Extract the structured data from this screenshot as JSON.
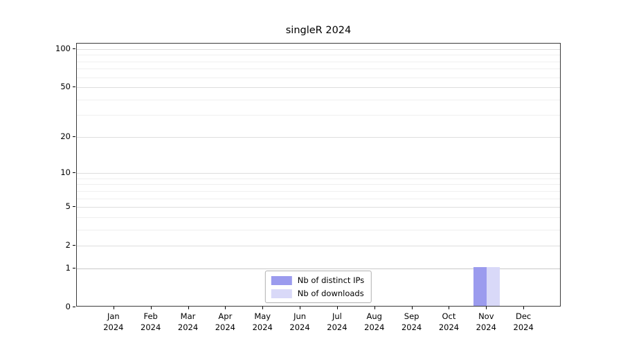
{
  "chart_data": {
    "type": "bar",
    "title": "singleR 2024",
    "categories": [
      "Jan 2024",
      "Feb 2024",
      "Mar 2024",
      "Apr 2024",
      "May 2024",
      "Jun 2024",
      "Jul 2024",
      "Aug 2024",
      "Sep 2024",
      "Oct 2024",
      "Nov 2024",
      "Dec 2024"
    ],
    "series": [
      {
        "name": "Nb of distinct IPs",
        "color": "#9b9bee",
        "values": [
          0,
          0,
          0,
          0,
          0,
          0,
          0,
          0,
          0,
          0,
          1,
          0
        ]
      },
      {
        "name": "Nb of downloads",
        "color": "#d9d9f8",
        "values": [
          0,
          0,
          0,
          0,
          0,
          0,
          0,
          0,
          0,
          0,
          1,
          0
        ]
      }
    ],
    "xlabel": "",
    "ylabel": "",
    "yticks": [
      0,
      1,
      2,
      5,
      10,
      20,
      50,
      100
    ],
    "ylim": [
      0,
      100
    ],
    "yscale": "log1p",
    "grid": true,
    "legend_position": "bottom-center"
  }
}
